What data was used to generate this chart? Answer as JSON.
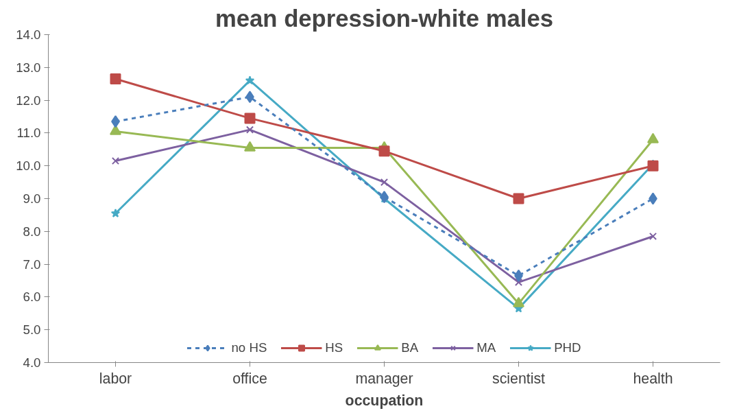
{
  "chart_data": {
    "type": "line",
    "title": "mean depression-white males",
    "xlabel": "occupation",
    "categories": [
      "labor",
      "office",
      "manager",
      "scientist",
      "health"
    ],
    "series": [
      {
        "name": "no HS",
        "color": "#4a7ebb",
        "marker": "diamond",
        "line_style": "dashed",
        "values": [
          11.35,
          12.1,
          9.05,
          6.65,
          9.0
        ]
      },
      {
        "name": "HS",
        "color": "#be4b48",
        "marker": "square",
        "line_style": "solid",
        "values": [
          12.65,
          11.45,
          10.45,
          9.0,
          10.0
        ]
      },
      {
        "name": "BA",
        "color": "#98b954",
        "marker": "triangle",
        "line_style": "solid",
        "values": [
          11.05,
          10.55,
          10.55,
          5.8,
          10.8
        ]
      },
      {
        "name": "MA",
        "color": "#7d60a0",
        "marker": "cross",
        "line_style": "solid",
        "values": [
          10.15,
          11.1,
          9.5,
          6.45,
          7.85
        ]
      },
      {
        "name": "PHD",
        "color": "#46aac5",
        "marker": "star",
        "line_style": "solid",
        "values": [
          8.55,
          12.6,
          9.0,
          5.65,
          10.05
        ]
      }
    ],
    "ylim": [
      4.0,
      14.0
    ],
    "yticks": [
      {
        "value": 4,
        "label": "4.0"
      },
      {
        "value": 5,
        "label": "5.0"
      },
      {
        "value": 6,
        "label": "6.0"
      },
      {
        "value": 7,
        "label": "7.0"
      },
      {
        "value": 8,
        "label": "8.0"
      },
      {
        "value": 9,
        "label": "9.0"
      },
      {
        "value": 10,
        "label": "10.0"
      },
      {
        "value": 11,
        "label": "11.0"
      },
      {
        "value": 12,
        "label": "12.0"
      },
      {
        "value": 13,
        "label": "13.0"
      },
      {
        "value": 14,
        "label": "14.0"
      }
    ],
    "grid": false,
    "legend": "bottom"
  }
}
